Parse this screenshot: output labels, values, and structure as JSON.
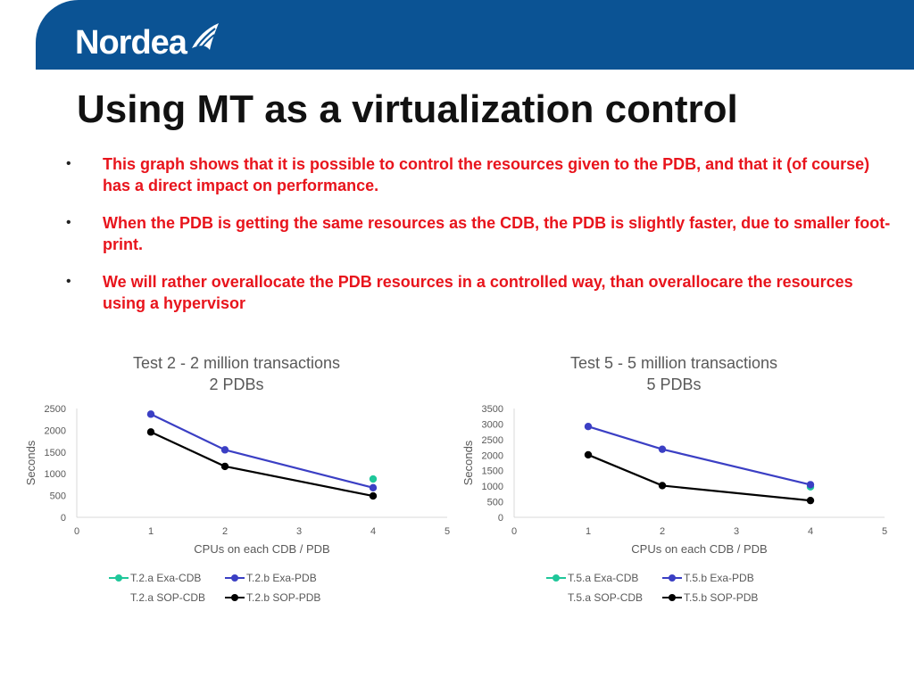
{
  "header": {
    "logo_text": "Nordea",
    "colors": {
      "band": "#0b5394",
      "logo": "#ffffff"
    },
    "logo_icon": "sail-icon"
  },
  "slide": {
    "title": "Using MT as a virtualization control",
    "bullet_marker": "•",
    "bullets": [
      "This graph shows that it is possible to control the resources given to the PDB, and that it (of course) has a direct impact on performance.",
      "When the PDB is getting the same resources as the CDB, the PDB is slightly faster, due to smaller foot-print.",
      "We will rather overallocate the PDB resources in a controlled way, than overallocare the resources using a hypervisor"
    ],
    "bullet_color": "#e8141c"
  },
  "chart_data": [
    {
      "type": "line",
      "title": [
        "Test 2 - 2 million transactions",
        "2 PDBs"
      ],
      "xlabel": "CPUs on each CDB / PDB",
      "ylabel": "Seconds",
      "xlim": [
        0,
        5
      ],
      "ylim": [
        0,
        2500
      ],
      "xticks": [
        "0",
        "1",
        "2",
        "3",
        "4",
        "5"
      ],
      "yticks": [
        "0",
        "500",
        "1000",
        "1500",
        "2000",
        "2500"
      ],
      "grid": false,
      "legend_position": "bottom",
      "series": [
        {
          "name": "T.2.a Exa-CDB",
          "color": "#1fc79a",
          "x": [
            4
          ],
          "y": [
            880
          ],
          "line": false
        },
        {
          "name": "T.2.b Exa-PDB",
          "color": "#3b3fc4",
          "x": [
            1,
            2,
            4
          ],
          "y": [
            2370,
            1550,
            680
          ],
          "line": true
        },
        {
          "name": "T.2.a SOP-CDB",
          "color": "#000000",
          "x": [],
          "y": [],
          "line": false
        },
        {
          "name": "T.2.b SOP-PDB",
          "color": "#000000",
          "x": [
            1,
            2,
            4
          ],
          "y": [
            1960,
            1170,
            490
          ],
          "line": true
        }
      ]
    },
    {
      "type": "line",
      "title": [
        "Test 5 - 5 million transactions",
        "5 PDBs"
      ],
      "xlabel": "CPUs on each CDB / PDB",
      "ylabel": "Seconds",
      "xlim": [
        0,
        5
      ],
      "ylim": [
        0,
        3500
      ],
      "xticks": [
        "0",
        "1",
        "2",
        "3",
        "4",
        "5"
      ],
      "yticks": [
        "0",
        "500",
        "1000",
        "1500",
        "2000",
        "2500",
        "3000",
        "3500"
      ],
      "grid": false,
      "legend_position": "bottom",
      "series": [
        {
          "name": "T.5.a Exa-CDB",
          "color": "#1fc79a",
          "x": [
            4
          ],
          "y": [
            980
          ],
          "line": false
        },
        {
          "name": "T.5.b Exa-PDB",
          "color": "#3b3fc4",
          "x": [
            1,
            2,
            4
          ],
          "y": [
            2920,
            2190,
            1050
          ],
          "line": true
        },
        {
          "name": "T.5.a SOP-CDB",
          "color": "#000000",
          "x": [],
          "y": [],
          "line": false
        },
        {
          "name": "T.5.b SOP-PDB",
          "color": "#000000",
          "x": [
            1,
            2,
            4
          ],
          "y": [
            2010,
            1020,
            540
          ],
          "line": true
        }
      ]
    }
  ]
}
